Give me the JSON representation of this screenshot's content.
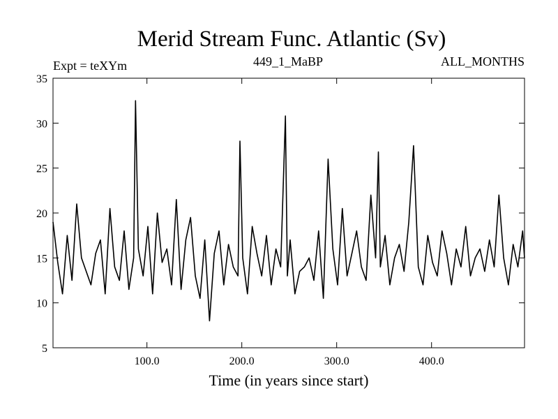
{
  "chart_data": {
    "type": "line",
    "title": "Merid Stream Func. Atlantic (Sv)",
    "subtitle_left": "Expt = teXYm",
    "subtitle_center": "449_1_MaBP",
    "subtitle_right": "ALL_MONTHS",
    "xlabel": "Time (in years since start)",
    "ylabel": "",
    "xlim": [
      1,
      498
    ],
    "ylim": [
      5,
      35
    ],
    "xticks": [
      100,
      200,
      300,
      400
    ],
    "xtick_labels": [
      "100.0",
      "200.0",
      "300.0",
      "400.0"
    ],
    "yticks": [
      5,
      10,
      15,
      20,
      25,
      30,
      35
    ],
    "ytick_labels": [
      "5",
      "10",
      "15",
      "20",
      "25",
      "30",
      "35"
    ],
    "grid": false,
    "series": [
      {
        "color": "#000000",
        "x": [
          1,
          6,
          11,
          16,
          21,
          26,
          31,
          36,
          41,
          46,
          51,
          56,
          61,
          66,
          71,
          76,
          81,
          86,
          88,
          91,
          96,
          101,
          106,
          111,
          116,
          121,
          126,
          131,
          136,
          141,
          146,
          151,
          156,
          161,
          166,
          171,
          176,
          181,
          186,
          191,
          196,
          198,
          201,
          206,
          211,
          216,
          221,
          226,
          231,
          236,
          241,
          246,
          248,
          251,
          256,
          261,
          266,
          271,
          276,
          281,
          286,
          291,
          296,
          301,
          306,
          311,
          316,
          321,
          326,
          331,
          336,
          341,
          344,
          346,
          351,
          356,
          361,
          366,
          371,
          376,
          381,
          386,
          391,
          396,
          401,
          406,
          411,
          416,
          421,
          426,
          431,
          436,
          441,
          446,
          451,
          456,
          461,
          466,
          471,
          476,
          481,
          486,
          491,
          496,
          498
        ],
        "y": [
          19.0,
          14.5,
          11.0,
          17.5,
          12.5,
          21.0,
          15.0,
          13.5,
          12.0,
          15.5,
          17.0,
          11.0,
          20.5,
          14.0,
          12.5,
          18.0,
          11.5,
          15.0,
          32.5,
          16.0,
          13.0,
          18.5,
          11.0,
          20.0,
          14.5,
          16.0,
          12.0,
          21.5,
          11.5,
          17.0,
          19.5,
          13.0,
          10.5,
          17.0,
          8.0,
          15.5,
          18.0,
          12.0,
          16.5,
          14.0,
          13.0,
          28.0,
          15.0,
          11.0,
          18.5,
          15.5,
          13.0,
          17.5,
          12.0,
          16.0,
          14.0,
          30.8,
          13.0,
          17.0,
          11.0,
          13.5,
          14.0,
          15.0,
          12.5,
          18.0,
          10.5,
          26.0,
          16.0,
          12.0,
          20.5,
          13.0,
          15.5,
          18.0,
          14.0,
          12.5,
          22.0,
          15.0,
          26.8,
          14.0,
          17.5,
          12.0,
          15.0,
          16.5,
          13.5,
          19.0,
          27.5,
          14.0,
          12.0,
          17.5,
          14.5,
          13.0,
          18.0,
          15.5,
          12.0,
          16.0,
          14.0,
          18.5,
          13.0,
          15.0,
          16.0,
          13.5,
          17.0,
          14.0,
          22.0,
          15.0,
          12.0,
          16.5,
          14.0,
          18.0,
          15.0
        ]
      }
    ]
  }
}
